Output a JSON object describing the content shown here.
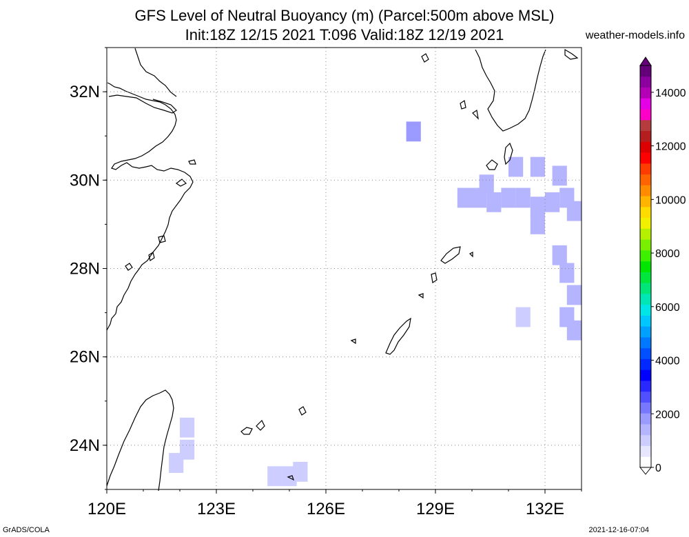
{
  "title": {
    "line1": "GFS Level of Neutral Buoyancy (m) (Parcel:500m above MSL)",
    "line2": "Init:18Z 12/15 2021 T:096 Valid:18Z 12/19 2021"
  },
  "site": "weather-models.info",
  "footer": {
    "left": "GrADS/COLA",
    "right": "2021-12-16-07:04"
  },
  "map": {
    "lon_range": [
      120,
      133
    ],
    "lat_range": [
      23,
      33
    ],
    "lon_ticks": [
      {
        "value": 120,
        "label": "120E"
      },
      {
        "value": 123,
        "label": "123E"
      },
      {
        "value": 126,
        "label": "126E"
      },
      {
        "value": 129,
        "label": "129E"
      },
      {
        "value": 132,
        "label": "132E"
      }
    ],
    "lat_ticks": [
      {
        "value": 24,
        "label": "24N"
      },
      {
        "value": 26,
        "label": "26N"
      },
      {
        "value": 28,
        "label": "28N"
      },
      {
        "value": 30,
        "label": "30N"
      },
      {
        "value": 32,
        "label": "32N"
      }
    ],
    "grid": true
  },
  "colorbar": {
    "labels": [
      "0",
      "2000",
      "4000",
      "6000",
      "8000",
      "10000",
      "12000",
      "14000"
    ],
    "colors": [
      "#ffffff",
      "#e6e6ff",
      "#cdcdff",
      "#b4b4ff",
      "#9b9bff",
      "#7878ff",
      "#5050ff",
      "#2828ff",
      "#0000ff",
      "#0028ff",
      "#0050ff",
      "#0078ff",
      "#00a0ff",
      "#00c8ff",
      "#00e6e6",
      "#00e6b4",
      "#00e678",
      "#00e63c",
      "#00e600",
      "#3cf000",
      "#78f000",
      "#b4f000",
      "#f0f000",
      "#ffdc00",
      "#ffb400",
      "#ff8c00",
      "#ff6400",
      "#ff3c00",
      "#ff0000",
      "#dc0000",
      "#b41e1e",
      "#b43c3c",
      "#ff00c8",
      "#e600e6",
      "#b400b4",
      "#8c00a0",
      "#640078"
    ]
  },
  "lnb_cells": [
    {
      "lon": 128.4,
      "lat": 31.1,
      "value": 1800
    },
    {
      "lon": 130.4,
      "lat": 29.9,
      "value": 1500
    },
    {
      "lon": 131.2,
      "lat": 30.3,
      "value": 1500
    },
    {
      "lon": 131.8,
      "lat": 30.3,
      "value": 1500
    },
    {
      "lon": 132.4,
      "lat": 30.1,
      "value": 1500
    },
    {
      "lon": 129.8,
      "lat": 29.6,
      "value": 1500
    },
    {
      "lon": 130.2,
      "lat": 29.6,
      "value": 1500
    },
    {
      "lon": 130.6,
      "lat": 29.5,
      "value": 1500
    },
    {
      "lon": 131.0,
      "lat": 29.6,
      "value": 1500
    },
    {
      "lon": 131.4,
      "lat": 29.6,
      "value": 1500
    },
    {
      "lon": 131.8,
      "lat": 29.4,
      "value": 1500
    },
    {
      "lon": 132.2,
      "lat": 29.5,
      "value": 1500
    },
    {
      "lon": 132.6,
      "lat": 29.6,
      "value": 1500
    },
    {
      "lon": 132.8,
      "lat": 29.3,
      "value": 1500
    },
    {
      "lon": 131.8,
      "lat": 29.0,
      "value": 1500
    },
    {
      "lon": 132.4,
      "lat": 28.3,
      "value": 1500
    },
    {
      "lon": 132.6,
      "lat": 27.9,
      "value": 1500
    },
    {
      "lon": 132.8,
      "lat": 27.4,
      "value": 1500
    },
    {
      "lon": 132.6,
      "lat": 26.9,
      "value": 1500
    },
    {
      "lon": 132.8,
      "lat": 26.6,
      "value": 1500
    },
    {
      "lon": 131.4,
      "lat": 26.9,
      "value": 1200
    },
    {
      "lon": 122.2,
      "lat": 24.4,
      "value": 1000
    },
    {
      "lon": 122.2,
      "lat": 23.9,
      "value": 1000
    },
    {
      "lon": 121.9,
      "lat": 23.6,
      "value": 1000
    },
    {
      "lon": 124.6,
      "lat": 23.3,
      "value": 1000
    },
    {
      "lon": 125.0,
      "lat": 23.3,
      "value": 1000
    },
    {
      "lon": 125.3,
      "lat": 23.4,
      "value": 1000
    }
  ]
}
